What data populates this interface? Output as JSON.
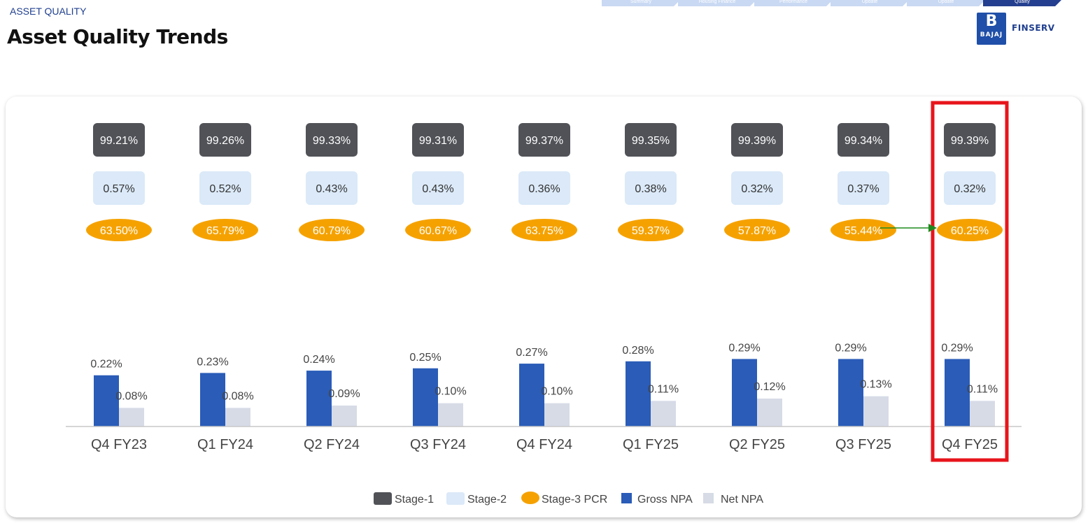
{
  "header": {
    "section_label": "ASSET QUALITY",
    "title": "Asset Quality Trends",
    "nav_tabs": [
      "Summary",
      "Housing Finance",
      "Performance",
      "Update",
      "Update",
      "Quality"
    ],
    "active_tab_index": 5,
    "logo": {
      "icon": "bajaj-logo-icon",
      "mark": "B",
      "brand": "BAJAJ",
      "text": "FINSERV"
    }
  },
  "chart_data": {
    "type": "bar",
    "categories": [
      "Q4 FY23",
      "Q1 FY24",
      "Q2 FY24",
      "Q3 FY24",
      "Q4 FY24",
      "Q1 FY25",
      "Q2 FY25",
      "Q3 FY25",
      "Q4 FY25"
    ],
    "stage_rows": [
      {
        "name": "Stage-1",
        "color": "#505257",
        "text_color": "#ffffff",
        "shape": "rounded-rect",
        "labels": [
          "99.21%",
          "99.26%",
          "99.33%",
          "99.31%",
          "99.37%",
          "99.35%",
          "99.39%",
          "99.34%",
          "99.39%"
        ]
      },
      {
        "name": "Stage-2",
        "color": "#dbe9f8",
        "text_color": "#333333",
        "shape": "rounded-rect",
        "labels": [
          "0.57%",
          "0.52%",
          "0.43%",
          "0.43%",
          "0.36%",
          "0.38%",
          "0.32%",
          "0.37%",
          "0.32%"
        ]
      },
      {
        "name": "Stage-3 PCR",
        "color": "#f5a200",
        "text_color": "#ffffff",
        "shape": "ellipse",
        "labels": [
          "63.50%",
          "65.79%",
          "60.79%",
          "60.67%",
          "63.75%",
          "59.37%",
          "57.87%",
          "55.44%",
          "60.25%"
        ]
      }
    ],
    "series": [
      {
        "name": "Gross NPA",
        "color": "#2a5cb8",
        "values": [
          0.22,
          0.23,
          0.24,
          0.25,
          0.27,
          0.28,
          0.29,
          0.29,
          0.29
        ],
        "labels": [
          "0.22%",
          "0.23%",
          "0.24%",
          "0.25%",
          "0.27%",
          "0.28%",
          "0.29%",
          "0.29%",
          "0.29%"
        ]
      },
      {
        "name": "Net NPA",
        "color": "#d6dbe6",
        "values": [
          0.08,
          0.08,
          0.09,
          0.1,
          0.1,
          0.11,
          0.12,
          0.13,
          0.11
        ],
        "labels": [
          "0.08%",
          "0.08%",
          "0.09%",
          "0.10%",
          "0.10%",
          "0.11%",
          "0.12%",
          "0.13%",
          "0.11%"
        ]
      }
    ],
    "legend": {
      "placement": "bottom-center",
      "items": [
        {
          "name": "Stage-1",
          "color": "#505257",
          "shape": "rounded-rect"
        },
        {
          "name": "Stage-2",
          "color": "#dbe9f8",
          "shape": "rounded-rect"
        },
        {
          "name": "Stage-3 PCR",
          "color": "#f5a200",
          "shape": "ellipse"
        },
        {
          "name": "Gross NPA",
          "color": "#2a5cb8",
          "shape": "square"
        },
        {
          "name": "Net NPA",
          "color": "#d6dbe6",
          "shape": "square"
        }
      ]
    },
    "highlight": {
      "category": "Q4 FY25",
      "color": "#e8141b"
    },
    "arrow": {
      "to_category": "Q4 FY25",
      "row": "Stage-3 PCR",
      "color": "#1e8a1e"
    },
    "ylim": [
      0,
      0.35
    ],
    "grid": false
  }
}
